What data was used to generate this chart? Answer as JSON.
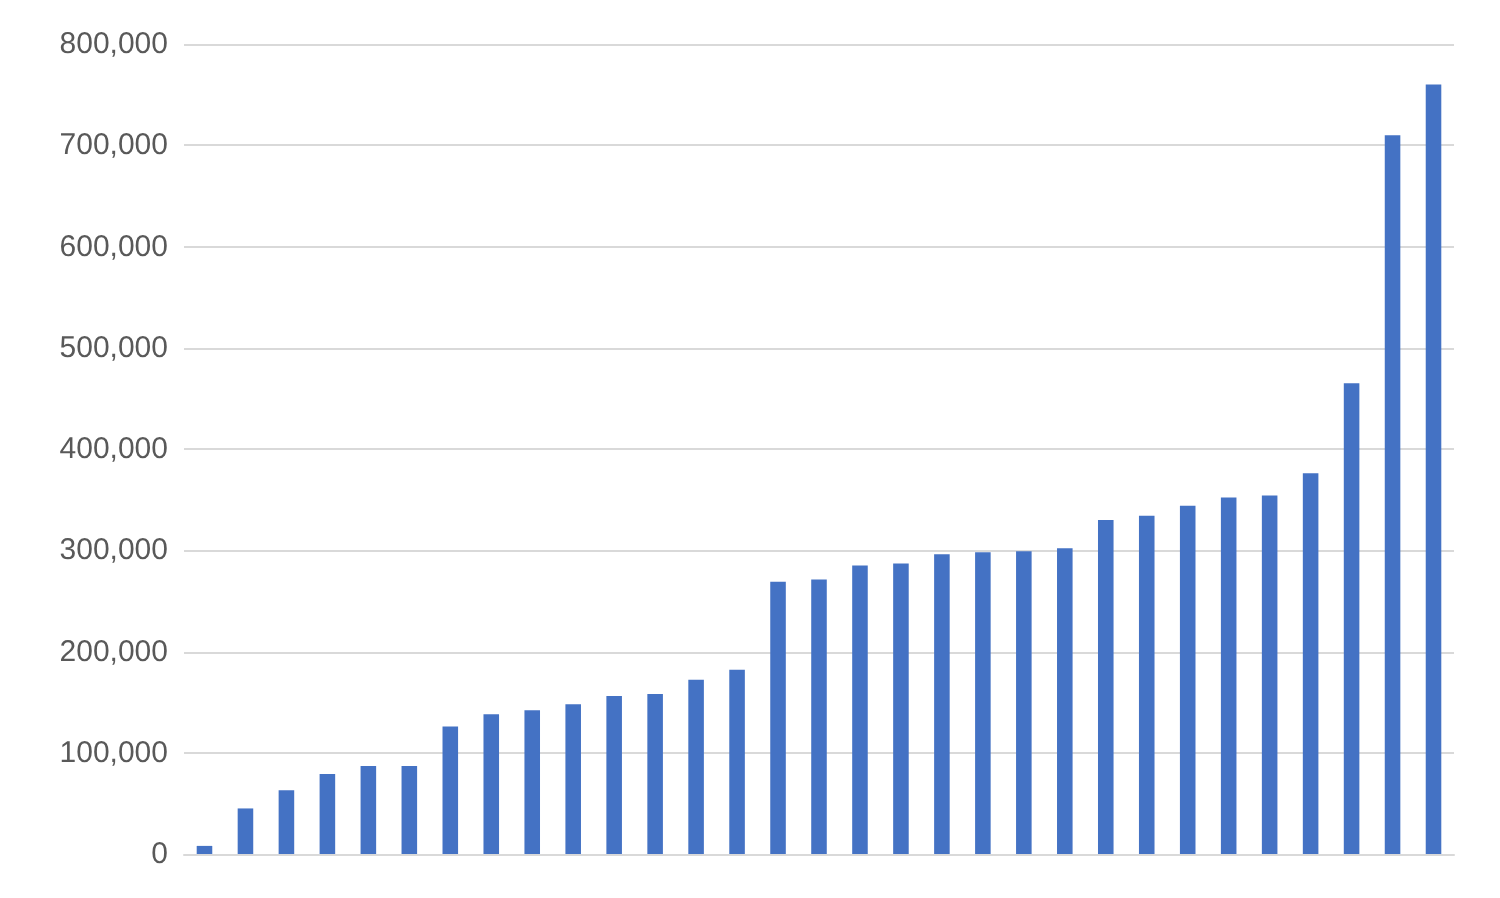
{
  "chart_data": {
    "type": "bar",
    "categories": [
      null,
      null,
      null,
      null,
      null,
      null,
      null,
      null,
      null,
      null,
      null,
      null,
      null,
      null,
      null,
      null,
      null,
      null,
      null,
      null,
      null,
      null,
      null,
      null,
      null,
      null,
      null,
      null,
      null,
      null,
      null
    ],
    "values": [
      8000,
      45000,
      63000,
      79000,
      87000,
      87000,
      126000,
      138000,
      142000,
      148000,
      156000,
      158000,
      172000,
      182000,
      269000,
      271000,
      285000,
      287000,
      296000,
      298000,
      299000,
      302000,
      330000,
      334000,
      344000,
      352000,
      354000,
      376000,
      465000,
      710000,
      760000
    ],
    "color": "#4472c4",
    "ylim": [
      0,
      800000
    ],
    "yticks": [
      {
        "value": 0,
        "label": "0"
      },
      {
        "value": 100000,
        "label": "100,000"
      },
      {
        "value": 200000,
        "label": "200,000"
      },
      {
        "value": 300000,
        "label": "300,000"
      },
      {
        "value": 400000,
        "label": "400,000"
      },
      {
        "value": 500000,
        "label": "500,000"
      },
      {
        "value": 600000,
        "label": "600,000"
      },
      {
        "value": 700000,
        "label": "700,000"
      },
      {
        "value": 800000,
        "label": "800,000"
      }
    ],
    "grid": "y"
  }
}
